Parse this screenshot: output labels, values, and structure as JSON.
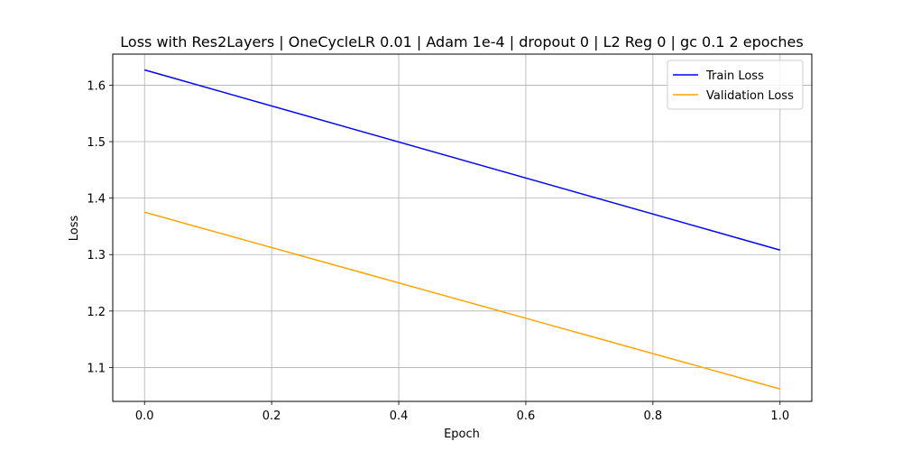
{
  "chart_data": {
    "type": "line",
    "title": "Loss with Res2Layers | OneCycleLR 0.01 | Adam 1e-4 | dropout 0 | L2 Reg 0 | gc 0.1 2 epoches",
    "xlabel": "Epoch",
    "ylabel": "Loss",
    "xlim": [
      -0.05,
      1.05
    ],
    "ylim": [
      1.04,
      1.655
    ],
    "x_ticks": [
      0.0,
      0.2,
      0.4,
      0.6,
      0.8,
      1.0
    ],
    "x_tick_labels": [
      "0.0",
      "0.2",
      "0.4",
      "0.6",
      "0.8",
      "1.0"
    ],
    "y_ticks": [
      1.1,
      1.2,
      1.3,
      1.4,
      1.5,
      1.6
    ],
    "y_tick_labels": [
      "1.1",
      "1.2",
      "1.3",
      "1.4",
      "1.5",
      "1.6"
    ],
    "grid": true,
    "legend_position": "top-right",
    "series": [
      {
        "name": "Train Loss",
        "color": "#0000ff",
        "x": [
          0.0,
          1.0
        ],
        "y": [
          1.627,
          1.308
        ]
      },
      {
        "name": "Validation Loss",
        "color": "#ffa500",
        "x": [
          0.0,
          1.0
        ],
        "y": [
          1.375,
          1.062
        ]
      }
    ]
  }
}
